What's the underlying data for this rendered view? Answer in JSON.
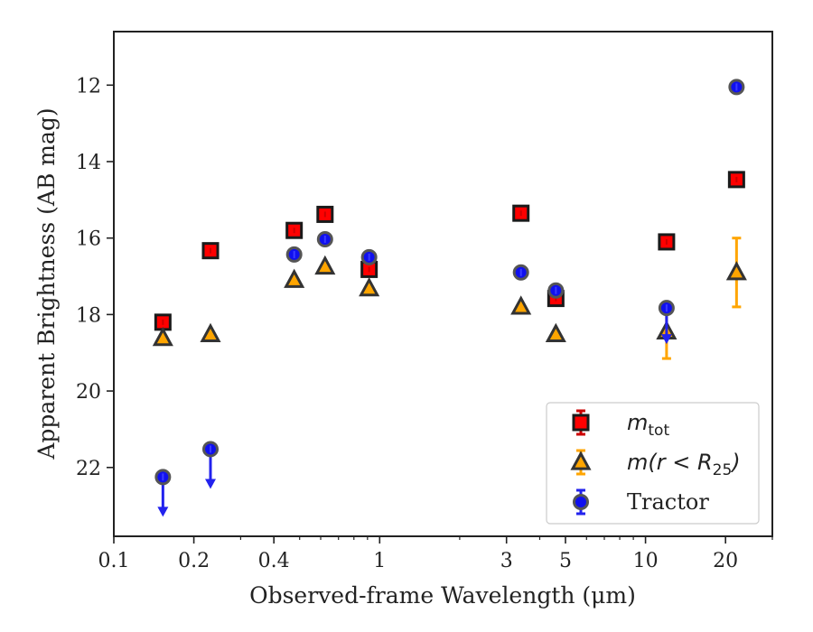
{
  "chart_data": {
    "type": "scatter",
    "xlabel": "Observed-frame Wavelength (μm)",
    "ylabel": "Apparent Brightness (AB mag)",
    "xscale": "log",
    "xlim": [
      0.1,
      30
    ],
    "ylim": [
      23.8,
      10.6
    ],
    "y_inverted": true,
    "grid": false,
    "legend_position": "lower-right",
    "x_ticks": [
      {
        "value": 0.1,
        "label": "0.1"
      },
      {
        "value": 0.2,
        "label": "0.2"
      },
      {
        "value": 0.4,
        "label": "0.4"
      },
      {
        "value": 1,
        "label": "1"
      },
      {
        "value": 3,
        "label": "3"
      },
      {
        "value": 5,
        "label": "5"
      },
      {
        "value": 10,
        "label": "10"
      },
      {
        "value": 20,
        "label": "20"
      }
    ],
    "y_ticks": [
      {
        "value": 12,
        "label": "12"
      },
      {
        "value": 14,
        "label": "14"
      },
      {
        "value": 16,
        "label": "16"
      },
      {
        "value": 18,
        "label": "18"
      },
      {
        "value": 20,
        "label": "20"
      },
      {
        "value": 22,
        "label": "22"
      }
    ],
    "series": [
      {
        "name": "m_tot",
        "legend_label": "m",
        "legend_sub": "tot",
        "marker": "square",
        "color": "#ff0000",
        "edge": "#1a1a1a",
        "points": [
          {
            "x": 0.153,
            "y": 18.2
          },
          {
            "x": 0.231,
            "y": 16.33
          },
          {
            "x": 0.477,
            "y": 15.8
          },
          {
            "x": 0.623,
            "y": 15.38
          },
          {
            "x": 0.913,
            "y": 16.82
          },
          {
            "x": 3.4,
            "y": 15.35
          },
          {
            "x": 4.6,
            "y": 17.58
          },
          {
            "x": 12.0,
            "y": 16.1
          },
          {
            "x": 22.0,
            "y": 14.47,
            "err": 0.08
          }
        ]
      },
      {
        "name": "m(r < R25)",
        "legend_label": "m(r < R",
        "legend_sub": "25",
        "legend_suffix": ")",
        "marker": "triangle",
        "color": "#ffa500",
        "edge": "#333333",
        "points": [
          {
            "x": 0.153,
            "y": 18.62
          },
          {
            "x": 0.231,
            "y": 18.52
          },
          {
            "x": 0.477,
            "y": 17.1
          },
          {
            "x": 0.623,
            "y": 16.75
          },
          {
            "x": 0.913,
            "y": 17.32
          },
          {
            "x": 3.4,
            "y": 17.8
          },
          {
            "x": 4.6,
            "y": 18.52
          },
          {
            "x": 12.0,
            "y": 18.45,
            "err": 0.7
          },
          {
            "x": 22.0,
            "y": 16.9,
            "err": 0.9
          }
        ]
      },
      {
        "name": "Tractor",
        "legend_label": "Tractor",
        "marker": "circle",
        "color": "#1010ee",
        "edge": "#555555",
        "points": [
          {
            "x": 0.153,
            "y": 22.25,
            "upper_limit": true
          },
          {
            "x": 0.231,
            "y": 21.52,
            "upper_limit": true
          },
          {
            "x": 0.477,
            "y": 16.43
          },
          {
            "x": 0.623,
            "y": 16.03
          },
          {
            "x": 0.913,
            "y": 16.5
          },
          {
            "x": 3.4,
            "y": 16.9
          },
          {
            "x": 4.6,
            "y": 17.37
          },
          {
            "x": 12.0,
            "y": 17.83,
            "upper_limit": true,
            "arrow_short": true
          },
          {
            "x": 22.0,
            "y": 12.05
          }
        ]
      }
    ]
  }
}
